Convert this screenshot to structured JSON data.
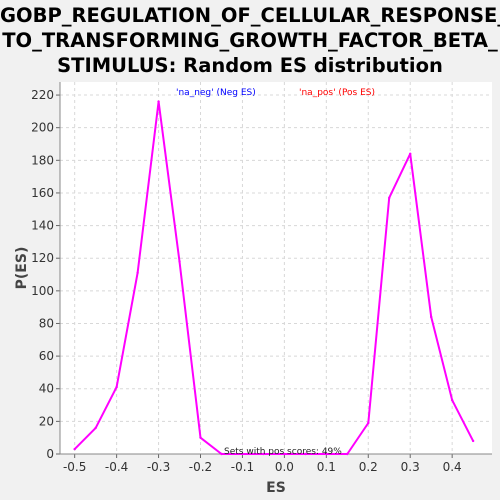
{
  "chart_data": {
    "type": "line",
    "title_lines": [
      "GOBP_REGULATION_OF_CELLULAR_RESPONSE_",
      "TO_TRANSFORMING_GROWTH_FACTOR_BETA_",
      "STIMULUS: Random ES distribution"
    ],
    "xlabel": "ES",
    "ylabel": "P(ES)",
    "xlim": [
      -0.535,
      0.495
    ],
    "ylim": [
      0,
      228
    ],
    "x_ticks": [
      -0.5,
      -0.4,
      -0.3,
      -0.2,
      -0.1,
      0.0,
      0.1,
      0.2,
      0.3,
      0.4
    ],
    "x_tick_labels": [
      "-0.5",
      "-0.4",
      "-0.3",
      "-0.2",
      "-0.1",
      "0.0",
      "0.1",
      "0.2",
      "0.3",
      "0.4"
    ],
    "y_ticks": [
      0,
      20,
      40,
      60,
      80,
      100,
      120,
      140,
      160,
      180,
      200,
      220
    ],
    "y_tick_labels": [
      "0",
      "20",
      "40",
      "60",
      "80",
      "100",
      "120",
      "140",
      "160",
      "180",
      "200",
      "220"
    ],
    "grid": true,
    "legend": [
      {
        "label": "'na_neg' (Neg ES)",
        "color": "#0000ff"
      },
      {
        "label": "'na_pos' (Pos ES)",
        "color": "#ff0000"
      }
    ],
    "annotation": "Sets with pos scores: 49%",
    "series": [
      {
        "color": "#ff00ff",
        "points": [
          [
            -0.5,
            3
          ],
          [
            -0.45,
            16
          ],
          [
            -0.4,
            41
          ],
          [
            -0.35,
            111
          ],
          [
            -0.3,
            216
          ],
          [
            -0.25,
            118
          ],
          [
            -0.2,
            10
          ],
          [
            -0.15,
            0
          ],
          [
            -0.1,
            0
          ],
          [
            -0.05,
            0
          ],
          [
            0.0,
            0
          ],
          [
            0.05,
            0
          ],
          [
            0.1,
            0
          ],
          [
            0.15,
            0
          ],
          [
            0.2,
            19
          ],
          [
            0.25,
            157
          ],
          [
            0.3,
            184
          ],
          [
            0.35,
            84
          ],
          [
            0.4,
            33
          ],
          [
            0.45,
            8
          ]
        ]
      }
    ]
  }
}
